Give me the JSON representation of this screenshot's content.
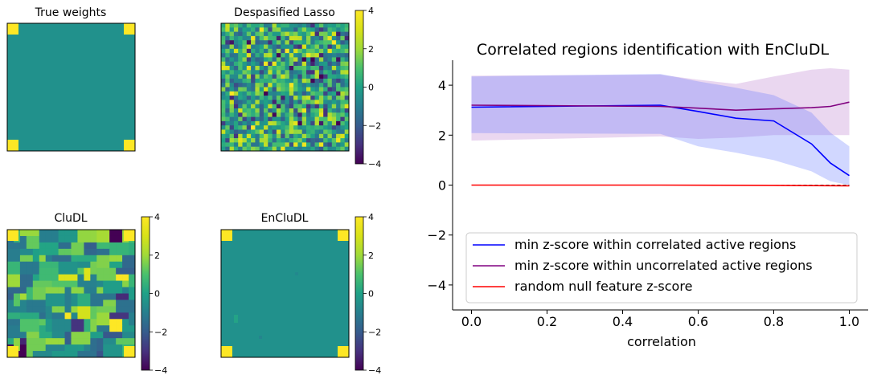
{
  "colors": {
    "viridis_dark": "#440154",
    "viridis_mid": "#21918c",
    "viridis_bright": "#fde725",
    "series_correlated": "#0000ff",
    "series_uncorrelated": "#800080",
    "series_null": "#ff0000"
  },
  "chart_data": [
    {
      "type": "heatmap",
      "title": "True weights",
      "grid": false,
      "colorbar": false,
      "description_values": "zero everywhere except the four corner blocks which equal 4"
    },
    {
      "type": "heatmap",
      "title": "Despasified Lasso",
      "colorbar": true,
      "colorbar_ticks": [
        "4",
        "2",
        "0",
        "−2",
        "−4"
      ],
      "clim": [
        -4,
        4
      ]
    },
    {
      "type": "heatmap",
      "title": "CluDL",
      "colorbar": true,
      "colorbar_ticks": [
        "4",
        "2",
        "0",
        "−2",
        "−4"
      ],
      "clim": [
        -4,
        4
      ]
    },
    {
      "type": "heatmap",
      "title": "EnCluDL",
      "colorbar": true,
      "colorbar_ticks": [
        "4",
        "2",
        "0",
        "−2",
        "−4"
      ],
      "clim": [
        -4,
        4
      ]
    },
    {
      "type": "line",
      "title": "Correlated regions identification with EnCluDL",
      "xlabel": "correlation",
      "ylabel": "",
      "xlim": [
        -0.05,
        1.05
      ],
      "ylim": [
        -5,
        5
      ],
      "xticks": [
        "0.0",
        "0.2",
        "0.4",
        "0.6",
        "0.8",
        "1.0"
      ],
      "yticks": [
        "4",
        "2",
        "0",
        "−2",
        "−4"
      ],
      "legend_position": "lower-left",
      "series": [
        {
          "name": "min z-score within correlated active regions",
          "color": "#0000ff",
          "x": [
            0.0,
            0.5,
            0.6,
            0.7,
            0.8,
            0.9,
            0.95,
            1.0
          ],
          "y": [
            3.12,
            3.2,
            2.95,
            2.68,
            2.57,
            1.65,
            0.88,
            0.38
          ],
          "band_upper": [
            4.35,
            4.45,
            4.15,
            3.9,
            3.6,
            2.9,
            2.1,
            1.55
          ],
          "band_lower": [
            2.08,
            2.05,
            1.55,
            1.3,
            1.0,
            0.55,
            0.15,
            0.0
          ]
        },
        {
          "name": "min z-score within uncorrelated active regions",
          "color": "#800080",
          "x": [
            0.0,
            0.5,
            0.6,
            0.7,
            0.8,
            0.9,
            0.95,
            1.0
          ],
          "y": [
            3.2,
            3.15,
            3.08,
            3.0,
            3.05,
            3.1,
            3.15,
            3.32
          ],
          "band_upper": [
            4.38,
            4.42,
            4.22,
            4.05,
            4.35,
            4.62,
            4.68,
            4.62
          ],
          "band_lower": [
            1.78,
            1.95,
            1.85,
            1.9,
            2.0,
            2.0,
            2.0,
            2.0
          ]
        },
        {
          "name": "random null feature z-score",
          "color": "#ff0000",
          "x": [
            0.0,
            0.5,
            0.8,
            1.0
          ],
          "y": [
            0.0,
            0.0,
            -0.01,
            -0.03
          ]
        }
      ]
    }
  ]
}
